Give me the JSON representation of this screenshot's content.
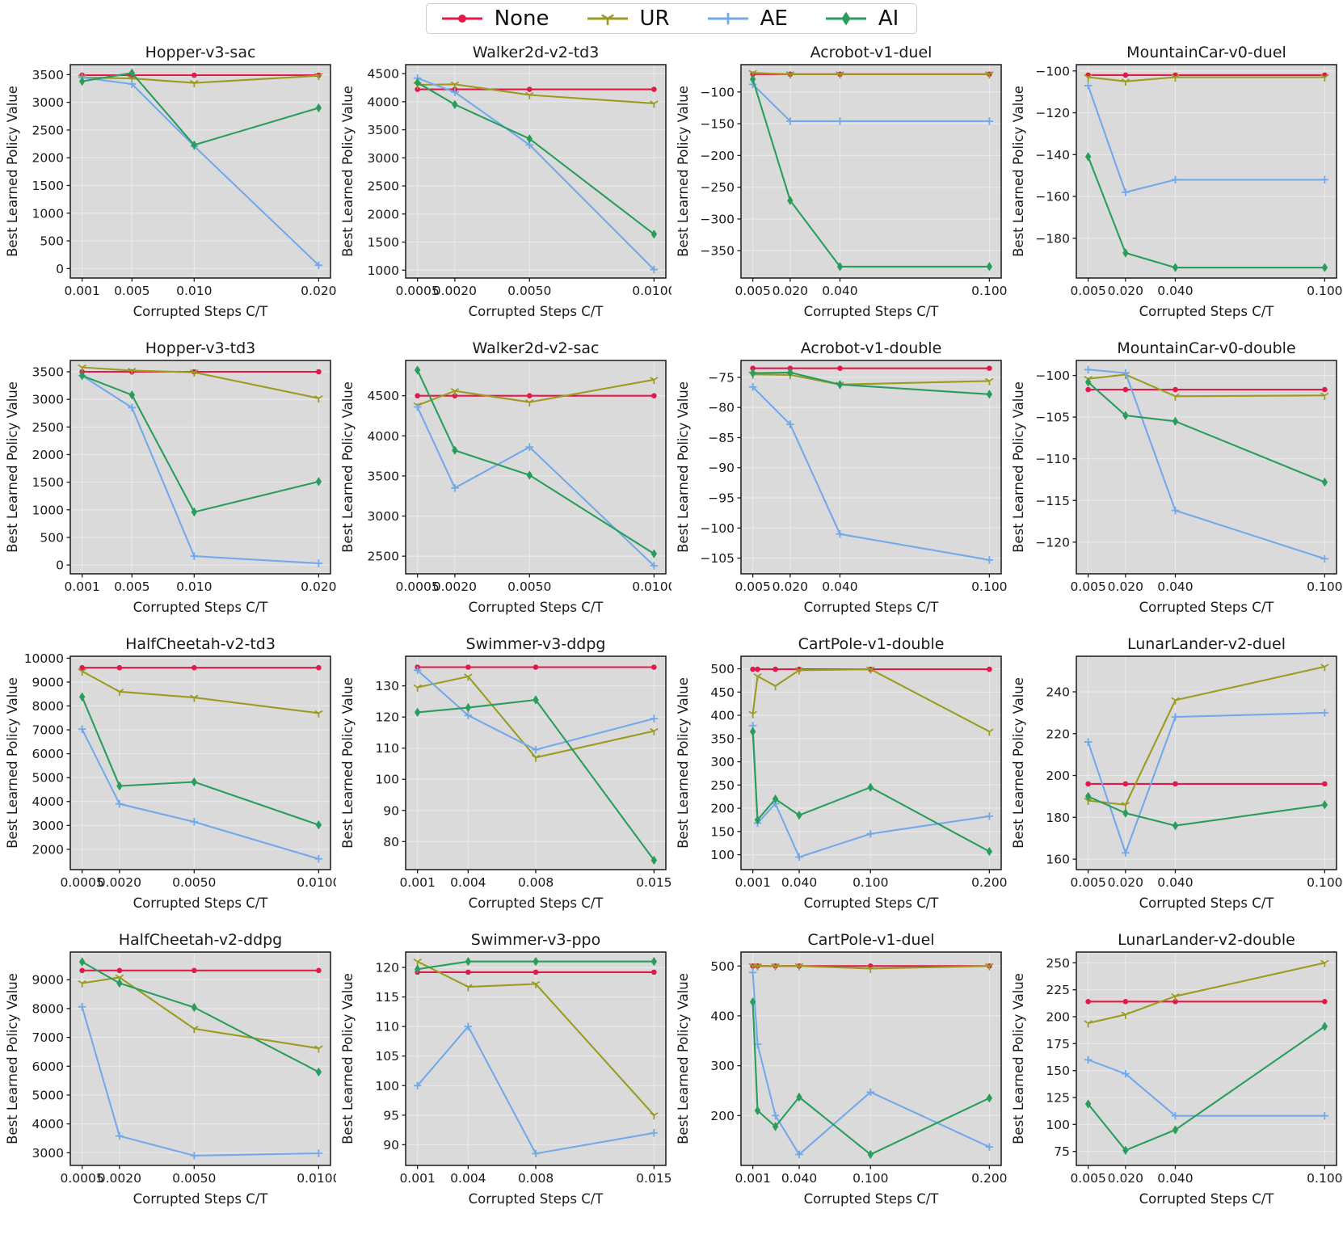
{
  "figure": {
    "xlabel": "Corrupted Steps C/T",
    "ylabel": "Best Learned Policy Value",
    "axes_bg": "#dadada",
    "grid_color": "#e9e9e9",
    "frame_color": "#1a1a1a",
    "legend": [
      {
        "label": "None",
        "color": "#e01a4a",
        "marker": "circle"
      },
      {
        "label": "UR",
        "color": "#9b9b21",
        "marker": "tri_down"
      },
      {
        "label": "AE",
        "color": "#73a9ea",
        "marker": "plus"
      },
      {
        "label": "AI",
        "color": "#2a9d5c",
        "marker": "diamond"
      }
    ]
  },
  "chart_data": [
    {
      "type": "line",
      "title": "Hopper-v3-sac",
      "x": [
        0.001,
        0.005,
        0.01,
        0.02
      ],
      "xticks": [
        0.001,
        0.005,
        0.01,
        0.02
      ],
      "xtick_labels": [
        "0.001",
        "0.005",
        "0.010",
        "0.020"
      ],
      "yticks": [
        0,
        500,
        1000,
        1500,
        2000,
        2500,
        3000,
        3500
      ],
      "ylim": [
        -170,
        3680
      ],
      "series": [
        {
          "name": "None",
          "values": [
            3490,
            3490,
            3490,
            3490
          ]
        },
        {
          "name": "UR",
          "values": [
            3450,
            3430,
            3350,
            3480
          ]
        },
        {
          "name": "AE",
          "values": [
            3450,
            3330,
            2210,
            60
          ]
        },
        {
          "name": "AI",
          "values": [
            3380,
            3530,
            2230,
            2900
          ]
        }
      ]
    },
    {
      "type": "line",
      "title": "Walker2d-v2-td3",
      "x": [
        0.0005,
        0.002,
        0.005,
        0.01
      ],
      "xticks": [
        0.0005,
        0.002,
        0.005,
        0.01
      ],
      "xtick_labels": [
        "0.0005",
        "0.0020",
        "0.0050",
        "0.0100"
      ],
      "yticks": [
        1000,
        1500,
        2000,
        2500,
        3000,
        3500,
        4000,
        4500
      ],
      "ylim": [
        860,
        4660
      ],
      "series": [
        {
          "name": "None",
          "values": [
            4220,
            4220,
            4220,
            4220
          ]
        },
        {
          "name": "UR",
          "values": [
            4300,
            4310,
            4120,
            3970
          ]
        },
        {
          "name": "AE",
          "values": [
            4420,
            4170,
            3230,
            1010
          ]
        },
        {
          "name": "AI",
          "values": [
            4340,
            3950,
            3340,
            1640
          ]
        }
      ]
    },
    {
      "type": "line",
      "title": "Acrobot-v1-duel",
      "x": [
        0.005,
        0.02,
        0.04,
        0.1
      ],
      "xticks": [
        0.005,
        0.02,
        0.04,
        0.1
      ],
      "xtick_labels": [
        "0.005",
        "0.020",
        "0.040",
        "0.100"
      ],
      "yticks": [
        -350,
        -300,
        -250,
        -200,
        -150,
        -100
      ],
      "ylim": [
        -393,
        -57
      ],
      "series": [
        {
          "name": "None",
          "values": [
            -72,
            -72,
            -72,
            -72
          ]
        },
        {
          "name": "UR",
          "values": [
            -70,
            -72,
            -72,
            -72
          ]
        },
        {
          "name": "AE",
          "values": [
            -88,
            -146,
            -146,
            -146
          ]
        },
        {
          "name": "AI",
          "values": [
            -80,
            -271,
            -375,
            -375
          ]
        }
      ]
    },
    {
      "type": "line",
      "title": "MountainCar-v0-duel",
      "x": [
        0.005,
        0.02,
        0.04,
        0.1
      ],
      "xticks": [
        0.005,
        0.02,
        0.04,
        0.1
      ],
      "xtick_labels": [
        "0.005",
        "0.020",
        "0.040",
        "0.100"
      ],
      "yticks": [
        -180,
        -160,
        -140,
        -120,
        -100
      ],
      "ylim": [
        -199,
        -97
      ],
      "series": [
        {
          "name": "None",
          "values": [
            -102,
            -102,
            -102,
            -102
          ]
        },
        {
          "name": "UR",
          "values": [
            -103,
            -105,
            -103,
            -103
          ]
        },
        {
          "name": "AE",
          "values": [
            -107,
            -158,
            -152,
            -152
          ]
        },
        {
          "name": "AI",
          "values": [
            -141,
            -187,
            -194,
            -194
          ]
        }
      ]
    },
    {
      "type": "line",
      "title": "Hopper-v3-td3",
      "x": [
        0.001,
        0.005,
        0.01,
        0.02
      ],
      "xticks": [
        0.001,
        0.005,
        0.01,
        0.02
      ],
      "xtick_labels": [
        "0.001",
        "0.005",
        "0.010",
        "0.020"
      ],
      "yticks": [
        0,
        500,
        1000,
        1500,
        2000,
        2500,
        3000,
        3500
      ],
      "ylim": [
        -160,
        3705
      ],
      "series": [
        {
          "name": "None",
          "values": [
            3500,
            3500,
            3500,
            3500
          ]
        },
        {
          "name": "UR",
          "values": [
            3580,
            3520,
            3490,
            3020
          ]
        },
        {
          "name": "AE",
          "values": [
            3430,
            2850,
            160,
            30
          ]
        },
        {
          "name": "AI",
          "values": [
            3430,
            3080,
            960,
            1510
          ]
        }
      ]
    },
    {
      "type": "line",
      "title": "Walker2d-v2-sac",
      "x": [
        0.0005,
        0.002,
        0.005,
        0.01
      ],
      "xticks": [
        0.0005,
        0.002,
        0.005,
        0.01
      ],
      "xtick_labels": [
        "0.0005",
        "0.0020",
        "0.0050",
        "0.0100"
      ],
      "yticks": [
        2500,
        3000,
        3500,
        4000,
        4500
      ],
      "ylim": [
        2280,
        4940
      ],
      "series": [
        {
          "name": "None",
          "values": [
            4500,
            4500,
            4500,
            4500
          ]
        },
        {
          "name": "UR",
          "values": [
            4380,
            4560,
            4420,
            4700
          ]
        },
        {
          "name": "AE",
          "values": [
            4360,
            3350,
            3860,
            2380
          ]
        },
        {
          "name": "AI",
          "values": [
            4820,
            3820,
            3510,
            2530
          ]
        }
      ]
    },
    {
      "type": "line",
      "title": "Acrobot-v1-double",
      "x": [
        0.005,
        0.02,
        0.04,
        0.1
      ],
      "xticks": [
        0.005,
        0.02,
        0.04,
        0.1
      ],
      "xtick_labels": [
        "0.005",
        "0.020",
        "0.040",
        "0.100"
      ],
      "yticks": [
        -105,
        -100,
        -95,
        -90,
        -85,
        -80,
        -75
      ],
      "ylim": [
        -107.6,
        -72.2
      ],
      "series": [
        {
          "name": "None",
          "values": [
            -73.5,
            -73.5,
            -73.5,
            -73.5
          ]
        },
        {
          "name": "UR",
          "values": [
            -74.5,
            -74.6,
            -76.2,
            -75.6
          ]
        },
        {
          "name": "AE",
          "values": [
            -76.6,
            -82.8,
            -101,
            -105.3
          ]
        },
        {
          "name": "AI",
          "values": [
            -74.3,
            -74.2,
            -76.2,
            -77.8
          ]
        }
      ]
    },
    {
      "type": "line",
      "title": "MountainCar-v0-double",
      "x": [
        0.005,
        0.02,
        0.04,
        0.1
      ],
      "xticks": [
        0.005,
        0.02,
        0.04,
        0.1
      ],
      "xtick_labels": [
        "0.005",
        "0.020",
        "0.040",
        "0.100"
      ],
      "yticks": [
        -120,
        -115,
        -110,
        -105,
        -100
      ],
      "ylim": [
        -123.8,
        -98.2
      ],
      "series": [
        {
          "name": "None",
          "values": [
            -101.7,
            -101.7,
            -101.7,
            -101.7
          ]
        },
        {
          "name": "UR",
          "values": [
            -100.4,
            -99.9,
            -102.5,
            -102.4
          ]
        },
        {
          "name": "AE",
          "values": [
            -99.3,
            -99.7,
            -116.2,
            -122
          ]
        },
        {
          "name": "AI",
          "values": [
            -100.8,
            -104.8,
            -105.5,
            -112.8
          ]
        }
      ]
    },
    {
      "type": "line",
      "title": "HalfCheetah-v2-td3",
      "x": [
        0.0005,
        0.002,
        0.005,
        0.01
      ],
      "xticks": [
        0.0005,
        0.002,
        0.005,
        0.01
      ],
      "xtick_labels": [
        "0.0005",
        "0.0020",
        "0.0050",
        "0.0100"
      ],
      "yticks": [
        2000,
        3000,
        4000,
        5000,
        6000,
        7000,
        8000,
        9000,
        10000
      ],
      "ylim": [
        1150,
        10080
      ],
      "series": [
        {
          "name": "None",
          "values": [
            9600,
            9600,
            9600,
            9600
          ]
        },
        {
          "name": "UR",
          "values": [
            9450,
            8600,
            8350,
            7700
          ]
        },
        {
          "name": "AE",
          "values": [
            7030,
            3900,
            3150,
            1600
          ]
        },
        {
          "name": "AI",
          "values": [
            8380,
            4650,
            4820,
            3020
          ]
        }
      ]
    },
    {
      "type": "line",
      "title": "Swimmer-v3-ddpg",
      "x": [
        0.001,
        0.004,
        0.008,
        0.015
      ],
      "xticks": [
        0.001,
        0.004,
        0.008,
        0.015
      ],
      "xtick_labels": [
        "0.001",
        "0.004",
        "0.008",
        "0.015"
      ],
      "yticks": [
        80,
        90,
        100,
        110,
        120,
        130
      ],
      "ylim": [
        71,
        139.5
      ],
      "series": [
        {
          "name": "None",
          "values": [
            136,
            136,
            136,
            136
          ]
        },
        {
          "name": "UR",
          "values": [
            129.5,
            133,
            107,
            115.5
          ]
        },
        {
          "name": "AE",
          "values": [
            135,
            120.5,
            109.5,
            119.5
          ]
        },
        {
          "name": "AI",
          "values": [
            121.5,
            123,
            125.5,
            74
          ]
        }
      ]
    },
    {
      "type": "line",
      "title": "CartPole-v1-double",
      "x": [
        0.001,
        0.005,
        0.02,
        0.04,
        0.1,
        0.2
      ],
      "xticks": [
        0.001,
        0.04,
        0.1,
        0.2
      ],
      "xtick_labels": [
        "0.001",
        "0.040",
        "0.100",
        "0.200"
      ],
      "yticks": [
        100,
        150,
        200,
        250,
        300,
        350,
        400,
        450,
        500
      ],
      "ylim": [
        68,
        527
      ],
      "series": [
        {
          "name": "None",
          "values": [
            499,
            499,
            499,
            499,
            499,
            499
          ]
        },
        {
          "name": "UR",
          "values": [
            403,
            484,
            463,
            497,
            499,
            365
          ]
        },
        {
          "name": "AE",
          "values": [
            378,
            168,
            210,
            95,
            145,
            183
          ]
        },
        {
          "name": "AI",
          "values": [
            365,
            175,
            220,
            185,
            245,
            107
          ]
        }
      ]
    },
    {
      "type": "line",
      "title": "LunarLander-v2-duel",
      "x": [
        0.005,
        0.02,
        0.04,
        0.1
      ],
      "xticks": [
        0.005,
        0.02,
        0.04,
        0.1
      ],
      "xtick_labels": [
        "0.005",
        "0.020",
        "0.040",
        "0.100"
      ],
      "yticks": [
        160,
        180,
        200,
        220,
        240
      ],
      "ylim": [
        155,
        257
      ],
      "series": [
        {
          "name": "None",
          "values": [
            196,
            196,
            196,
            196
          ]
        },
        {
          "name": "UR",
          "values": [
            188,
            186,
            236,
            252
          ]
        },
        {
          "name": "AE",
          "values": [
            216,
            163,
            228,
            230
          ]
        },
        {
          "name": "AI",
          "values": [
            190,
            182,
            176,
            186
          ]
        }
      ]
    },
    {
      "type": "line",
      "title": "HalfCheetah-v2-ddpg",
      "x": [
        0.0005,
        0.002,
        0.005,
        0.01
      ],
      "xticks": [
        0.0005,
        0.002,
        0.005,
        0.01
      ],
      "xtick_labels": [
        "0.0005",
        "0.0020",
        "0.0050",
        "0.0100"
      ],
      "yticks": [
        3000,
        4000,
        5000,
        6000,
        7000,
        8000,
        9000
      ],
      "ylim": [
        2560,
        9960
      ],
      "series": [
        {
          "name": "None",
          "values": [
            9320,
            9320,
            9320,
            9320
          ]
        },
        {
          "name": "UR",
          "values": [
            8880,
            9080,
            7300,
            6620
          ]
        },
        {
          "name": "AE",
          "values": [
            8060,
            3580,
            2900,
            2980
          ]
        },
        {
          "name": "AI",
          "values": [
            9620,
            8880,
            8040,
            5800
          ]
        }
      ]
    },
    {
      "type": "line",
      "title": "Swimmer-v3-ppo",
      "x": [
        0.001,
        0.004,
        0.008,
        0.015
      ],
      "xticks": [
        0.001,
        0.004,
        0.008,
        0.015
      ],
      "xtick_labels": [
        "0.001",
        "0.004",
        "0.008",
        "0.015"
      ],
      "yticks": [
        90,
        95,
        100,
        105,
        110,
        115,
        120
      ],
      "ylim": [
        86.5,
        122.6
      ],
      "series": [
        {
          "name": "None",
          "values": [
            119.2,
            119.2,
            119.2,
            119.2
          ]
        },
        {
          "name": "UR",
          "values": [
            121,
            116.7,
            117.2,
            95
          ]
        },
        {
          "name": "AE",
          "values": [
            100,
            110,
            88.5,
            92
          ]
        },
        {
          "name": "AI",
          "values": [
            119.7,
            121,
            121,
            121
          ]
        }
      ]
    },
    {
      "type": "line",
      "title": "CartPole-v1-duel",
      "x": [
        0.001,
        0.005,
        0.02,
        0.04,
        0.1,
        0.2
      ],
      "xticks": [
        0.001,
        0.04,
        0.1,
        0.2
      ],
      "xtick_labels": [
        "0.001",
        "0.040",
        "0.100",
        "0.200"
      ],
      "yticks": [
        200,
        300,
        400,
        500
      ],
      "ylim": [
        100,
        528
      ],
      "series": [
        {
          "name": "None",
          "values": [
            500,
            500,
            500,
            500,
            500,
            500
          ]
        },
        {
          "name": "UR",
          "values": [
            500,
            500,
            500,
            500,
            495,
            500
          ]
        },
        {
          "name": "AE",
          "values": [
            487,
            343,
            200,
            122,
            247,
            137
          ]
        },
        {
          "name": "AI",
          "values": [
            428,
            210,
            178,
            237,
            122,
            235
          ]
        }
      ]
    },
    {
      "type": "line",
      "title": "LunarLander-v2-double",
      "x": [
        0.005,
        0.02,
        0.04,
        0.1
      ],
      "xticks": [
        0.005,
        0.02,
        0.04,
        0.1
      ],
      "xtick_labels": [
        "0.005",
        "0.020",
        "0.040",
        "0.100"
      ],
      "yticks": [
        75,
        100,
        125,
        150,
        175,
        200,
        225,
        250
      ],
      "ylim": [
        62,
        260
      ],
      "series": [
        {
          "name": "None",
          "values": [
            214,
            214,
            214,
            214
          ]
        },
        {
          "name": "UR",
          "values": [
            194,
            202,
            219,
            250
          ]
        },
        {
          "name": "AE",
          "values": [
            160,
            147,
            108,
            108
          ]
        },
        {
          "name": "AI",
          "values": [
            119,
            76,
            95,
            191
          ]
        }
      ]
    }
  ]
}
